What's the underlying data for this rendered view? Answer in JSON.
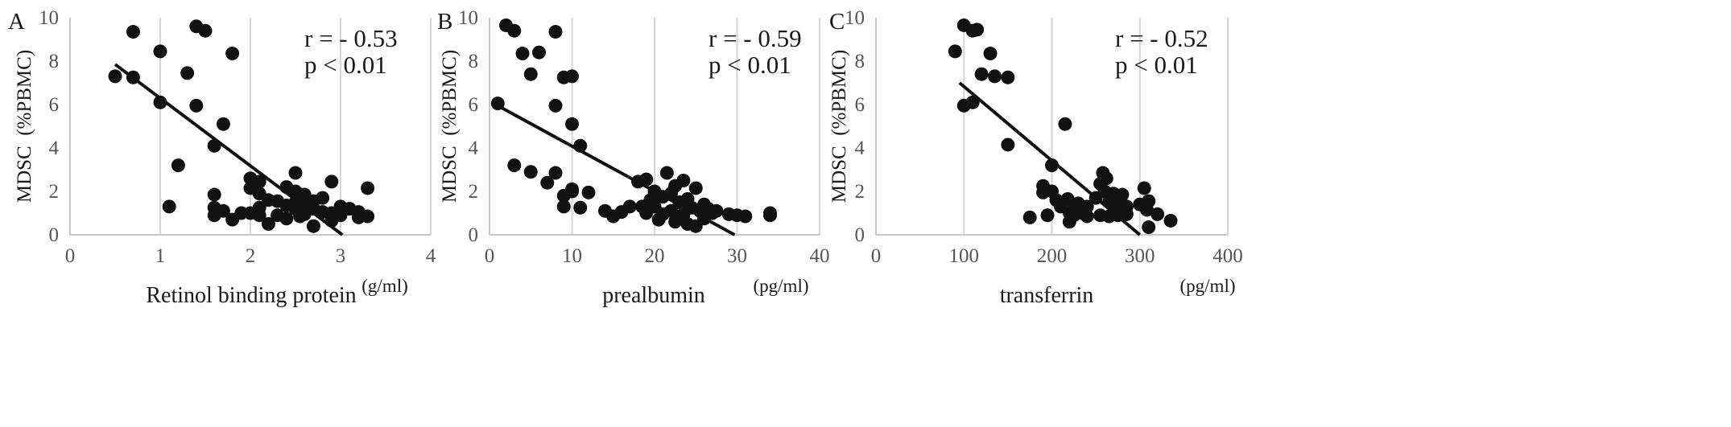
{
  "chart_data": [
    {
      "type": "scatter",
      "panel_label": "A",
      "ylabel": "MDSC  (%PBMC)",
      "xlabel": "Retinol binding protein",
      "x_unit": "(g/ml)",
      "xlim": [
        0,
        4
      ],
      "ylim": [
        0,
        10
      ],
      "x_ticks": [
        "0",
        "1",
        "2",
        "3",
        "4"
      ],
      "y_ticks": [
        "0",
        "2",
        "4",
        "6",
        "8",
        "10"
      ],
      "annotations": [
        "r = - 0.53",
        "p < 0.01"
      ],
      "grid": "vertical",
      "trendline": [
        [
          0.5,
          7.85
        ],
        [
          3.02,
          0.0
        ]
      ],
      "points": [
        [
          0.5,
          7.3
        ],
        [
          0.7,
          9.35
        ],
        [
          0.7,
          7.25
        ],
        [
          1.0,
          8.45
        ],
        [
          1.0,
          6.1
        ],
        [
          1.1,
          1.3
        ],
        [
          1.2,
          3.2
        ],
        [
          1.3,
          7.45
        ],
        [
          1.4,
          9.6
        ],
        [
          1.5,
          9.4
        ],
        [
          1.4,
          5.95
        ],
        [
          1.6,
          4.1
        ],
        [
          1.7,
          5.1
        ],
        [
          1.8,
          8.35
        ],
        [
          1.6,
          1.85
        ],
        [
          1.6,
          1.25
        ],
        [
          1.6,
          0.9
        ],
        [
          1.7,
          1.1
        ],
        [
          1.8,
          0.7
        ],
        [
          1.9,
          1.0
        ],
        [
          2.0,
          2.6
        ],
        [
          2.0,
          2.15
        ],
        [
          2.0,
          1.0
        ],
        [
          2.1,
          2.45
        ],
        [
          2.1,
          1.9
        ],
        [
          2.1,
          1.25
        ],
        [
          2.1,
          0.9
        ],
        [
          2.2,
          1.6
        ],
        [
          2.2,
          0.5
        ],
        [
          2.3,
          1.55
        ],
        [
          2.3,
          0.9
        ],
        [
          2.4,
          2.2
        ],
        [
          2.4,
          1.35
        ],
        [
          2.4,
          0.75
        ],
        [
          2.5,
          2.85
        ],
        [
          2.5,
          2.0
        ],
        [
          2.5,
          1.5
        ],
        [
          2.5,
          1.2
        ],
        [
          2.6,
          1.85
        ],
        [
          2.6,
          1.3
        ],
        [
          2.6,
          0.95
        ],
        [
          2.7,
          1.55
        ],
        [
          2.7,
          1.2
        ],
        [
          2.7,
          0.4
        ],
        [
          2.8,
          1.7
        ],
        [
          2.8,
          1.05
        ],
        [
          2.9,
          2.45
        ],
        [
          2.9,
          1.0
        ],
        [
          2.9,
          0.65
        ],
        [
          3.0,
          1.3
        ],
        [
          3.0,
          0.9
        ],
        [
          3.1,
          1.2
        ],
        [
          3.2,
          1.05
        ],
        [
          3.2,
          0.8
        ],
        [
          3.3,
          2.15
        ],
        [
          3.3,
          0.85
        ],
        [
          2.55,
          0.85
        ]
      ]
    },
    {
      "type": "scatter",
      "panel_label": "B",
      "ylabel": "MDSC  (%PBMC)",
      "xlabel": "prealbumin",
      "x_unit": "(pg/ml)",
      "xlim": [
        0,
        40
      ],
      "ylim": [
        0,
        10
      ],
      "x_ticks": [
        "0",
        "10",
        "20",
        "30",
        "40"
      ],
      "y_ticks": [
        "0",
        "2",
        "4",
        "6",
        "8",
        "10"
      ],
      "annotations": [
        "r = - 0.59",
        "p < 0.01"
      ],
      "grid": "vertical",
      "trendline": [
        [
          0.5,
          6.05
        ],
        [
          29.7,
          0.0
        ]
      ],
      "points": [
        [
          1.0,
          6.05
        ],
        [
          2.0,
          9.65
        ],
        [
          3.0,
          9.4
        ],
        [
          4.0,
          8.35
        ],
        [
          5.0,
          7.4
        ],
        [
          6.0,
          8.4
        ],
        [
          8.0,
          9.35
        ],
        [
          8.0,
          5.95
        ],
        [
          9.0,
          7.25
        ],
        [
          10.0,
          7.3
        ],
        [
          10.0,
          5.1
        ],
        [
          11.0,
          4.1
        ],
        [
          3.0,
          3.2
        ],
        [
          5.0,
          2.9
        ],
        [
          7.0,
          2.4
        ],
        [
          8.0,
          2.85
        ],
        [
          9.0,
          1.8
        ],
        [
          9.0,
          1.3
        ],
        [
          10.0,
          2.1
        ],
        [
          10.0,
          2.0
        ],
        [
          11.0,
          1.25
        ],
        [
          12.0,
          1.95
        ],
        [
          14.0,
          1.1
        ],
        [
          15.0,
          0.85
        ],
        [
          16.0,
          1.05
        ],
        [
          17.0,
          1.3
        ],
        [
          18.0,
          2.45
        ],
        [
          18.5,
          1.3
        ],
        [
          19.0,
          2.55
        ],
        [
          19.0,
          1.0
        ],
        [
          19.5,
          1.6
        ],
        [
          20.0,
          2.0
        ],
        [
          20.0,
          1.3
        ],
        [
          20.5,
          0.7
        ],
        [
          21.0,
          1.75
        ],
        [
          21.0,
          0.95
        ],
        [
          21.5,
          2.85
        ],
        [
          22.0,
          1.9
        ],
        [
          22.0,
          1.1
        ],
        [
          22.5,
          2.25
        ],
        [
          22.5,
          0.6
        ],
        [
          23.0,
          1.5
        ],
        [
          23.5,
          2.5
        ],
        [
          23.5,
          0.95
        ],
        [
          24.0,
          1.65
        ],
        [
          24.0,
          0.5
        ],
        [
          24.5,
          1.25
        ],
        [
          25.0,
          2.15
        ],
        [
          25.0,
          0.4
        ],
        [
          25.5,
          1.1
        ],
        [
          26.0,
          1.4
        ],
        [
          26.0,
          0.75
        ],
        [
          26.5,
          1.2
        ],
        [
          27.0,
          1.0
        ],
        [
          27.5,
          1.1
        ],
        [
          29.0,
          0.95
        ],
        [
          30.0,
          0.9
        ],
        [
          31.0,
          0.85
        ],
        [
          34.0,
          1.0
        ],
        [
          34.0,
          0.9
        ]
      ]
    },
    {
      "type": "scatter",
      "panel_label": "C",
      "ylabel": "MDSC  (%PBMC)",
      "xlabel": "transferrin",
      "x_unit": "(pg/ml)",
      "xlim": [
        0,
        400
      ],
      "ylim": [
        0,
        10
      ],
      "x_ticks": [
        "0",
        "100",
        "200",
        "300",
        "400"
      ],
      "y_ticks": [
        "0",
        "2",
        "4",
        "6",
        "8",
        "10"
      ],
      "annotations": [
        "r = - 0.52",
        "p < 0.01"
      ],
      "grid": "vertical",
      "trendline": [
        [
          95,
          7.0
        ],
        [
          300,
          0.0
        ]
      ],
      "points": [
        [
          90,
          8.45
        ],
        [
          100,
          9.65
        ],
        [
          100,
          5.95
        ],
        [
          110,
          9.4
        ],
        [
          115,
          9.45
        ],
        [
          110,
          6.1
        ],
        [
          120,
          7.4
        ],
        [
          130,
          8.35
        ],
        [
          135,
          7.3
        ],
        [
          150,
          7.25
        ],
        [
          150,
          4.15
        ],
        [
          175,
          0.8
        ],
        [
          190,
          2.25
        ],
        [
          190,
          1.95
        ],
        [
          195,
          0.9
        ],
        [
          200,
          3.2
        ],
        [
          200,
          2.0
        ],
        [
          205,
          1.6
        ],
        [
          210,
          1.3
        ],
        [
          215,
          5.1
        ],
        [
          218,
          1.65
        ],
        [
          220,
          1.0
        ],
        [
          220,
          0.6
        ],
        [
          225,
          1.2
        ],
        [
          225,
          0.9
        ],
        [
          230,
          1.45
        ],
        [
          235,
          1.0
        ],
        [
          240,
          1.3
        ],
        [
          240,
          0.85
        ],
        [
          250,
          1.7
        ],
        [
          255,
          2.35
        ],
        [
          255,
          0.9
        ],
        [
          258,
          2.85
        ],
        [
          260,
          2.0
        ],
        [
          262,
          2.6
        ],
        [
          265,
          1.5
        ],
        [
          265,
          0.85
        ],
        [
          270,
          1.9
        ],
        [
          272,
          1.2
        ],
        [
          275,
          0.9
        ],
        [
          278,
          1.65
        ],
        [
          280,
          1.85
        ],
        [
          282,
          1.1
        ],
        [
          285,
          1.3
        ],
        [
          285,
          0.95
        ],
        [
          300,
          1.4
        ],
        [
          305,
          2.15
        ],
        [
          308,
          1.15
        ],
        [
          310,
          1.55
        ],
        [
          310,
          0.35
        ],
        [
          320,
          0.95
        ],
        [
          335,
          0.65
        ]
      ]
    }
  ]
}
